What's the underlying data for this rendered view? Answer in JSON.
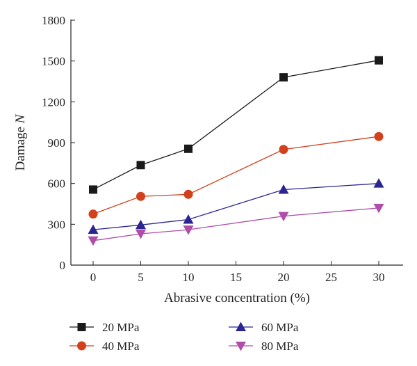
{
  "chart_data": {
    "type": "line",
    "xlabel": "Abrasive concentration (%)",
    "ylabel_main": "Damage ",
    "ylabel_var": "N",
    "x_ticks": [
      "0",
      "5",
      "10",
      "15",
      "20",
      "25",
      "30"
    ],
    "y_ticks": [
      "0",
      "300",
      "600",
      "900",
      "1200",
      "1500",
      "1800"
    ],
    "ylim": [
      0,
      1800
    ],
    "grid": false,
    "legend_position": "bottom",
    "categories": [
      "0",
      "5",
      "10",
      "20",
      "30"
    ],
    "series": [
      {
        "name": "20 MPa",
        "color": "#1a1a1a",
        "marker": "square",
        "values": [
          555,
          735,
          855,
          1380,
          1505
        ]
      },
      {
        "name": "40 MPa",
        "color": "#d2401c",
        "marker": "circle",
        "values": [
          375,
          505,
          520,
          850,
          945
        ]
      },
      {
        "name": "60 MPa",
        "color": "#2b2592",
        "marker": "triangle-up",
        "values": [
          260,
          295,
          335,
          555,
          600
        ]
      },
      {
        "name": "80 MPa",
        "color": "#b04da8",
        "marker": "triangle-down",
        "values": [
          180,
          230,
          260,
          360,
          420
        ]
      }
    ]
  }
}
